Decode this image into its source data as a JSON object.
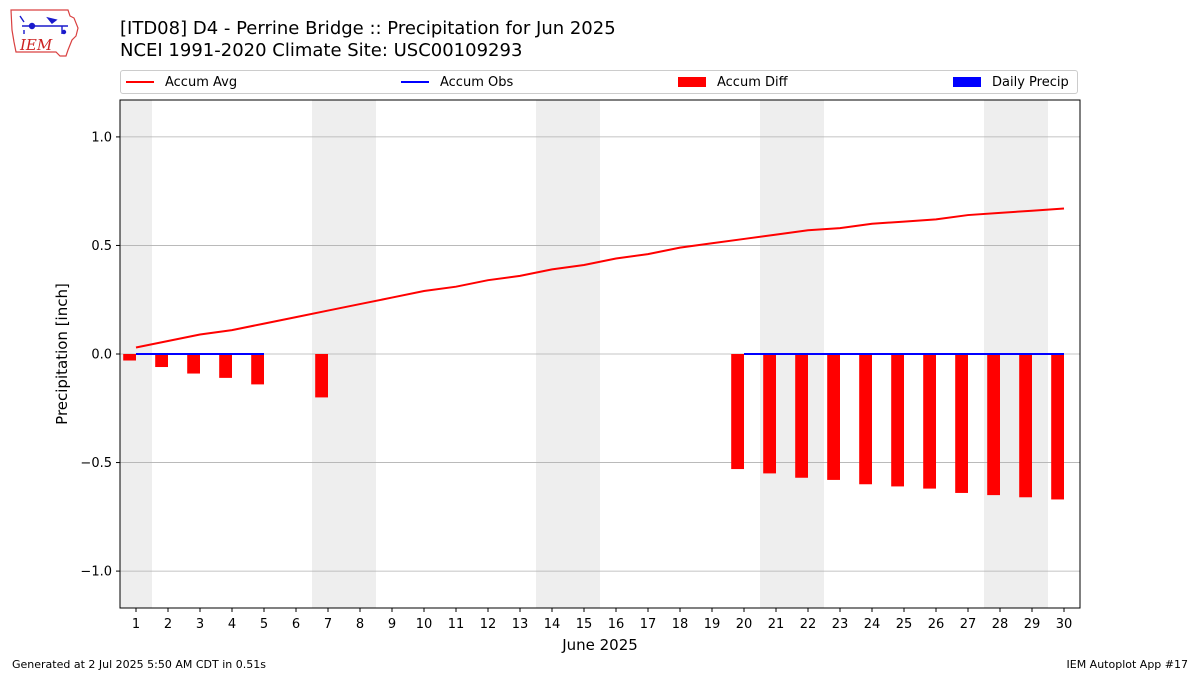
{
  "header": {
    "title_line1": "[ITD08] D4 - Perrine Bridge  :: Precipitation for Jun 2025",
    "title_line2": "NCEI 1991-2020 Climate Site: USC00109293"
  },
  "logo": {
    "text": "IEM"
  },
  "footer": {
    "generated": "Generated at 2 Jul 2025 5:50 AM CDT in 0.51s",
    "app": "IEM Autoplot App #17"
  },
  "colors": {
    "accum_avg": "#ff0000",
    "accum_obs": "#0000ff",
    "accum_diff": "#ff0000",
    "daily_precip": "#0000ff",
    "weekend_shade": "#eeeeee",
    "grid": "#b0b0b0"
  },
  "chart_data": {
    "type": "bar",
    "xlabel": "June 2025",
    "ylabel": "Precipitation [inch]",
    "xlim": [
      0.5,
      30.5
    ],
    "ylim": [
      -1.17,
      1.17
    ],
    "yticks": [
      -1.0,
      -0.5,
      0.0,
      0.5,
      1.0
    ],
    "ytick_labels": [
      "−1.0",
      "−0.5",
      "0.0",
      "0.5",
      "1.0"
    ],
    "grid": true,
    "legend": {
      "placement": "top",
      "entries": [
        "Accum Avg",
        "Accum Obs",
        "Accum Diff",
        "Daily Precip"
      ]
    },
    "days": [
      1,
      2,
      3,
      4,
      5,
      6,
      7,
      8,
      9,
      10,
      11,
      12,
      13,
      14,
      15,
      16,
      17,
      18,
      19,
      20,
      21,
      22,
      23,
      24,
      25,
      26,
      27,
      28,
      29,
      30
    ],
    "weekend_spans": [
      [
        0.5,
        1.5
      ],
      [
        6.5,
        8.5
      ],
      [
        13.5,
        15.5
      ],
      [
        20.5,
        22.5
      ],
      [
        27.5,
        29.5
      ]
    ],
    "series": [
      {
        "name": "Accum Avg",
        "kind": "line",
        "x": [
          1,
          2,
          3,
          4,
          5,
          6,
          7,
          8,
          9,
          10,
          11,
          12,
          13,
          14,
          15,
          16,
          17,
          18,
          19,
          20,
          21,
          22,
          23,
          24,
          25,
          26,
          27,
          28,
          29,
          30
        ],
        "values": [
          0.03,
          0.06,
          0.09,
          0.11,
          0.14,
          0.17,
          0.2,
          0.23,
          0.26,
          0.29,
          0.31,
          0.34,
          0.36,
          0.39,
          0.41,
          0.44,
          0.46,
          0.49,
          0.51,
          0.53,
          0.55,
          0.57,
          0.58,
          0.6,
          0.61,
          0.62,
          0.64,
          0.65,
          0.66,
          0.67
        ]
      },
      {
        "name": "Accum Obs",
        "kind": "line",
        "segments": [
          {
            "x": [
              1,
              2,
              3,
              4,
              5
            ],
            "values": [
              0,
              0,
              0,
              0,
              0
            ]
          },
          {
            "x": [
              20,
              21,
              22,
              23,
              24,
              25,
              26,
              27,
              28,
              29,
              30
            ],
            "values": [
              0,
              0,
              0,
              0,
              0,
              0,
              0,
              0,
              0,
              0,
              0
            ]
          }
        ]
      },
      {
        "name": "Accum Diff",
        "kind": "bar",
        "x": [
          1,
          2,
          3,
          4,
          5,
          7,
          20,
          21,
          22,
          23,
          24,
          25,
          26,
          27,
          28,
          29,
          30
        ],
        "values": [
          -0.03,
          -0.06,
          -0.09,
          -0.11,
          -0.14,
          -0.2,
          -0.53,
          -0.55,
          -0.57,
          -0.58,
          -0.6,
          -0.61,
          -0.62,
          -0.64,
          -0.65,
          -0.66,
          -0.67
        ]
      },
      {
        "name": "Daily Precip",
        "kind": "bar",
        "x": [],
        "values": []
      }
    ]
  }
}
